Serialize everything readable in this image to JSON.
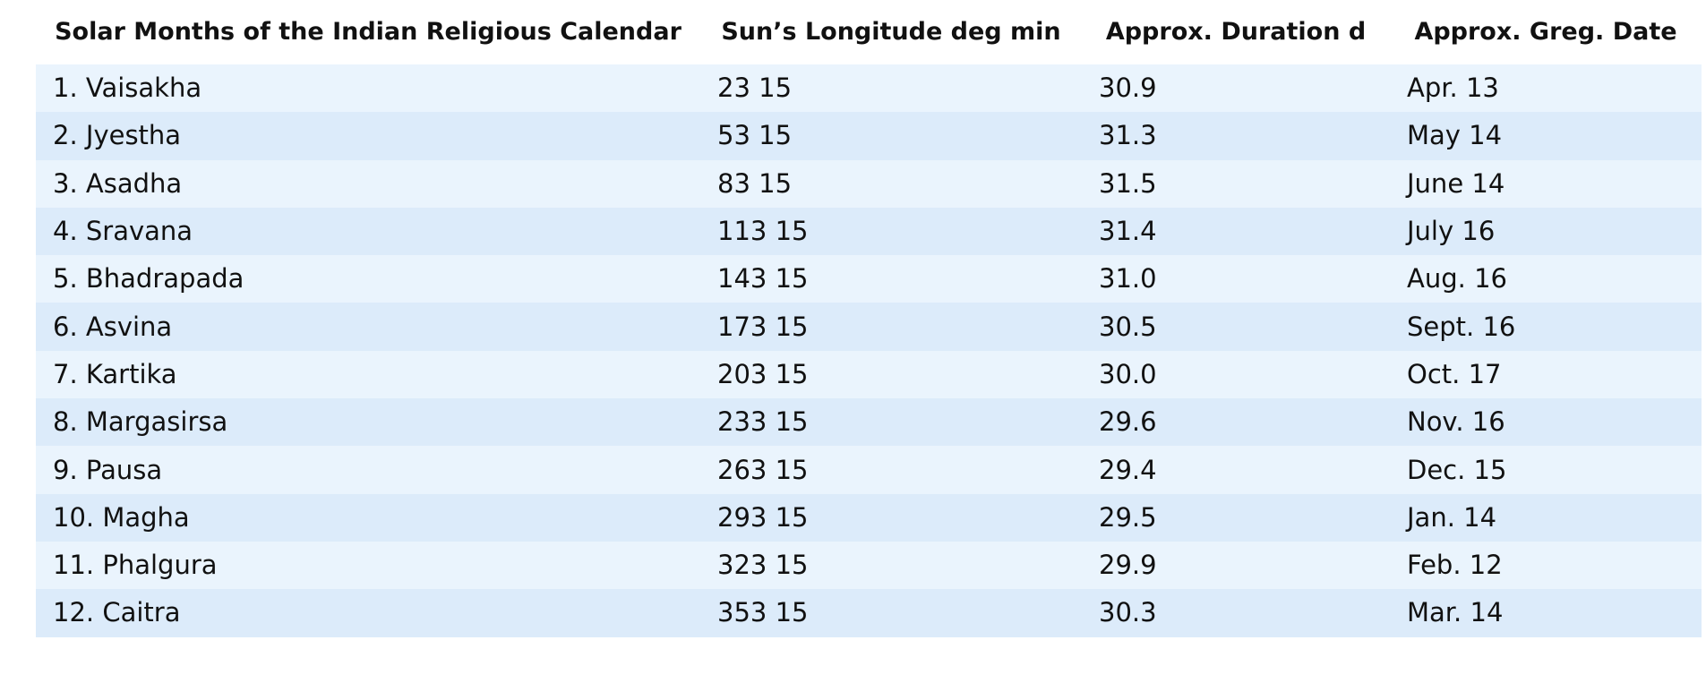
{
  "table": {
    "header": [
      "Solar Months of the Indian Religious Calendar",
      "Sun’s Longitude deg min",
      "Approx. Duration d",
      "Approx. Greg. Date"
    ],
    "rows": [
      [
        "1. Vaisakha",
        "23 15",
        "30.9",
        "Apr. 13"
      ],
      [
        "2. Jyestha",
        "53 15",
        "31.3",
        "May 14"
      ],
      [
        "3. Asadha",
        "83 15",
        "31.5",
        "June 14"
      ],
      [
        "4. Sravana",
        "113 15",
        "31.4",
        "July 16"
      ],
      [
        "5. Bhadrapada",
        "143 15",
        "31.0",
        "Aug. 16"
      ],
      [
        "6. Asvina",
        "173 15",
        "30.5",
        "Sept. 16"
      ],
      [
        "7. Kartika",
        "203 15",
        "30.0",
        "Oct. 17"
      ],
      [
        "8. Margasirsa",
        "233 15",
        "29.6",
        "Nov. 16"
      ],
      [
        "9. Pausa",
        "263 15",
        "29.4",
        "Dec. 15"
      ],
      [
        "10. Magha",
        "293 15",
        "29.5",
        "Jan. 14"
      ],
      [
        "11. Phalgura",
        "323 15",
        "29.9",
        "Feb. 12"
      ],
      [
        "12. Caitra",
        "353 15",
        "30.3",
        "Mar. 14"
      ]
    ]
  }
}
